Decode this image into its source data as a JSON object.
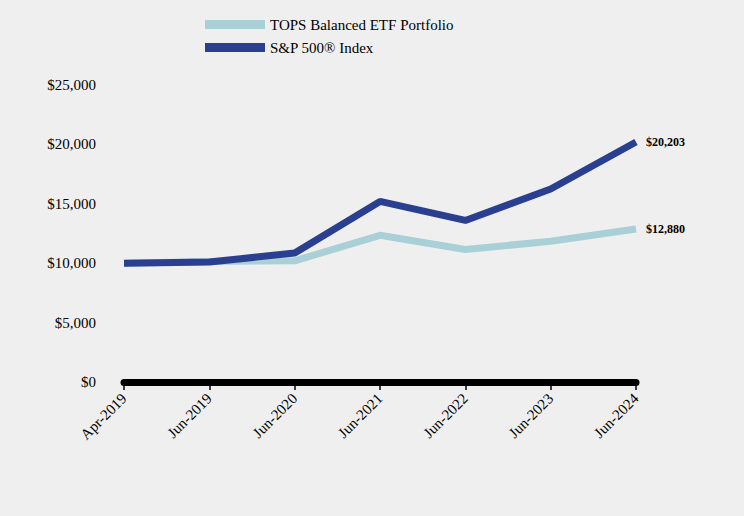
{
  "chart_data": {
    "type": "line",
    "categories": [
      "Apr-2019",
      "Jun-2019",
      "Jun-2020",
      "Jun-2021",
      "Jun-2022",
      "Jun-2023",
      "Jun-2024"
    ],
    "series": [
      {
        "name": "TOPS Balanced ETF Portfolio",
        "color": "#a8d0d6",
        "values": [
          10000,
          10150,
          10200,
          12350,
          11150,
          11850,
          12880
        ],
        "value_labels": [
          null,
          null,
          null,
          null,
          null,
          null,
          "$12,880"
        ]
      },
      {
        "name": "S&P 500® Index",
        "color": "#2a3f8f",
        "values": [
          10000,
          10100,
          10850,
          15200,
          13600,
          16250,
          20203
        ],
        "value_labels": [
          null,
          null,
          null,
          null,
          null,
          null,
          "$20,203"
        ]
      }
    ],
    "ylim": [
      0,
      25000
    ],
    "yticks": [
      {
        "value": 0,
        "label": "$0"
      },
      {
        "value": 5000,
        "label": "$5,000"
      },
      {
        "value": 10000,
        "label": "$10,000"
      },
      {
        "value": 15000,
        "label": "$15,000"
      },
      {
        "value": 20000,
        "label": "$20,000"
      },
      {
        "value": 25000,
        "label": "$25,000"
      }
    ],
    "grid": false,
    "legend": "top-left",
    "data_labels": true
  }
}
